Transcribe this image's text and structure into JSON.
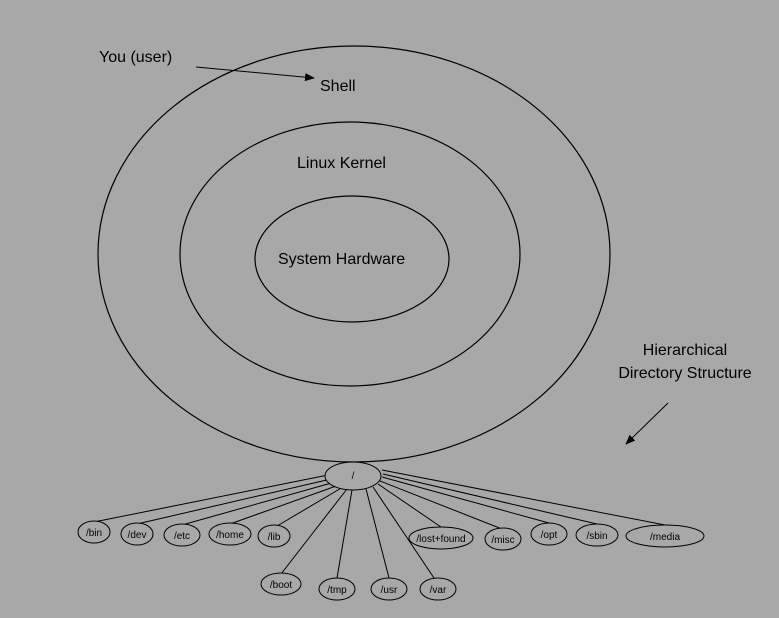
{
  "labels": {
    "user": "You (user)",
    "shell": "Shell",
    "kernel": "Linux Kernel",
    "hardware": "System Hardware",
    "hierarchy_line1": "Hierarchical",
    "hierarchy_line2": "Directory Structure"
  },
  "tree": {
    "root": "/",
    "children": [
      "/bin",
      "/dev",
      "/etc",
      "/home",
      "/lib",
      "/boot",
      "/tmp",
      "/usr",
      "/var",
      "/lost+found",
      "/misc",
      "/opt",
      "/sbin",
      "/media"
    ]
  }
}
